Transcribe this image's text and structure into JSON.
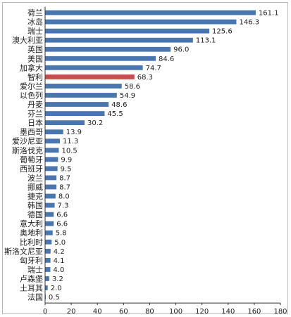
{
  "chart_data": {
    "type": "bar",
    "orientation": "horizontal",
    "categories": [
      "荷兰",
      "冰岛",
      "瑞士",
      "澳大利亚",
      "英国",
      "美国",
      "加拿大",
      "智利",
      "爱尔兰",
      "以色列",
      "丹麦",
      "芬兰",
      "日本",
      "墨西哥",
      "爱沙尼亚",
      "斯洛伐克",
      "葡萄牙",
      "西班牙",
      "波兰",
      "挪威",
      "捷克",
      "韩国",
      "德国",
      "意大利",
      "奥地利",
      "比利时",
      "斯洛文尼亚",
      "匈牙利",
      "瑞士",
      "卢森堡",
      "土耳其",
      "法国"
    ],
    "values": [
      161.1,
      146.3,
      125.6,
      113.1,
      96.0,
      84.6,
      74.7,
      68.3,
      58.6,
      54.9,
      48.6,
      45.5,
      30.2,
      13.9,
      11.3,
      10.5,
      9.9,
      9.5,
      8.7,
      8.7,
      8.0,
      7.3,
      6.6,
      6.6,
      5.8,
      5.0,
      4.2,
      4.1,
      4.0,
      3.2,
      2.0,
      0.5
    ],
    "value_labels": [
      "161.1",
      "146.3",
      "125.6",
      "113.1",
      "96.0",
      "84.6",
      "74.7",
      "68.3",
      "58.6",
      "54.9",
      "48.6",
      "45.5",
      "30.2",
      "13.9",
      "11.3",
      "10.5",
      "9.9",
      "9.5",
      "8.7",
      "8.7",
      "8.0",
      "7.3",
      "6.6",
      "6.6",
      "5.8",
      "5.0",
      "4.2",
      "4.1",
      "4.0",
      "3.2",
      "2.0",
      "0.5"
    ],
    "highlight_index": 7,
    "xlim": [
      0,
      180
    ],
    "xticks": [
      "0",
      "20",
      "40",
      "60",
      "80",
      "100",
      "120",
      "140",
      "160",
      "180"
    ],
    "colors": {
      "bar": "#4a76b0",
      "highlight": "#c0504d",
      "highlight_label": "#c0504d",
      "axis": "#333333",
      "frame": "#b9b9b9"
    },
    "grid": false,
    "title": "",
    "xlabel": "",
    "ylabel": ""
  }
}
